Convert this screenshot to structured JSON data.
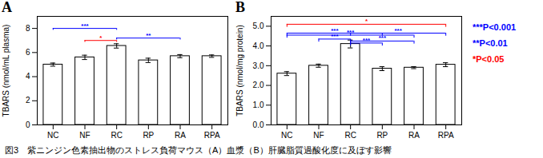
{
  "chart_data": [
    {
      "type": "bar",
      "title": "A",
      "categories": [
        "NC",
        "NF",
        "RC",
        "RP",
        "RA",
        "RPA"
      ],
      "values": [
        5.0,
        5.6,
        6.55,
        5.35,
        5.7,
        5.7
      ],
      "errors": [
        0.13,
        0.18,
        0.18,
        0.18,
        0.13,
        0.1
      ],
      "ylabel": "TBARS (nmol/mL plasma)",
      "ylim": [
        0,
        9
      ],
      "yticks": [
        0,
        2,
        4,
        6,
        8
      ],
      "color": "white",
      "annotations": [
        {
          "x1": "NC",
          "x2": "RC",
          "y": 8.0,
          "label": "***",
          "color": "#0000FF"
        },
        {
          "x1": "NF",
          "x2": "RC",
          "y": 7.0,
          "label": "*",
          "color": "#FF0000"
        },
        {
          "x1": "RC",
          "x2": "RA",
          "y": 7.2,
          "label": "**",
          "color": "#0000FF"
        }
      ]
    },
    {
      "type": "bar",
      "title": "B",
      "categories": [
        "NC",
        "NF",
        "RC",
        "RP",
        "RA",
        "RPA"
      ],
      "values": [
        2.6,
        3.0,
        4.1,
        2.85,
        2.9,
        3.05
      ],
      "errors": [
        0.1,
        0.08,
        0.2,
        0.1,
        0.05,
        0.1
      ],
      "ylabel": "TBARS (nmol/mg protein)",
      "ylim": [
        0,
        5.5
      ],
      "yticks": [
        0,
        1,
        2,
        3,
        4,
        5
      ],
      "color": "white",
      "annotations": [
        {
          "x1": "NC",
          "x2": "RPA",
          "y": 5.1,
          "label": "*",
          "color": "#FF0000"
        },
        {
          "x1": "NC",
          "x2": "RP",
          "y": 4.65,
          "label": "***",
          "color": "#0000FF"
        },
        {
          "x1": "NC",
          "x2": "RA",
          "y": 4.55,
          "label": "***",
          "color": "#0000FF"
        },
        {
          "x1": "NF",
          "x2": "RC",
          "y": 4.35,
          "label": "***",
          "color": "#0000FF"
        },
        {
          "x1": "RC",
          "x2": "RP",
          "y": 4.15,
          "label": "***",
          "color": "#0000FF"
        },
        {
          "x1": "RC",
          "x2": "RA",
          "y": 4.25,
          "label": "***",
          "color": "#0000FF"
        },
        {
          "x1": "RC",
          "x2": "RPA",
          "y": 4.65,
          "label": "***",
          "color": "#0000FF"
        }
      ]
    }
  ],
  "annotations": [
    {
      "text": "***P<0.001",
      "color": "#0000FF"
    },
    {
      "text": "**P<0.01",
      "color": "#0000FF"
    },
    {
      "text": "*P<0.05",
      "color": "#FF0000"
    }
  ],
  "caption": "図3　紫ニンジン色素抽出物のストレス負荷マウス（A）血漿（B）肝臓脂質過酸化度に及ぼす影響"
}
